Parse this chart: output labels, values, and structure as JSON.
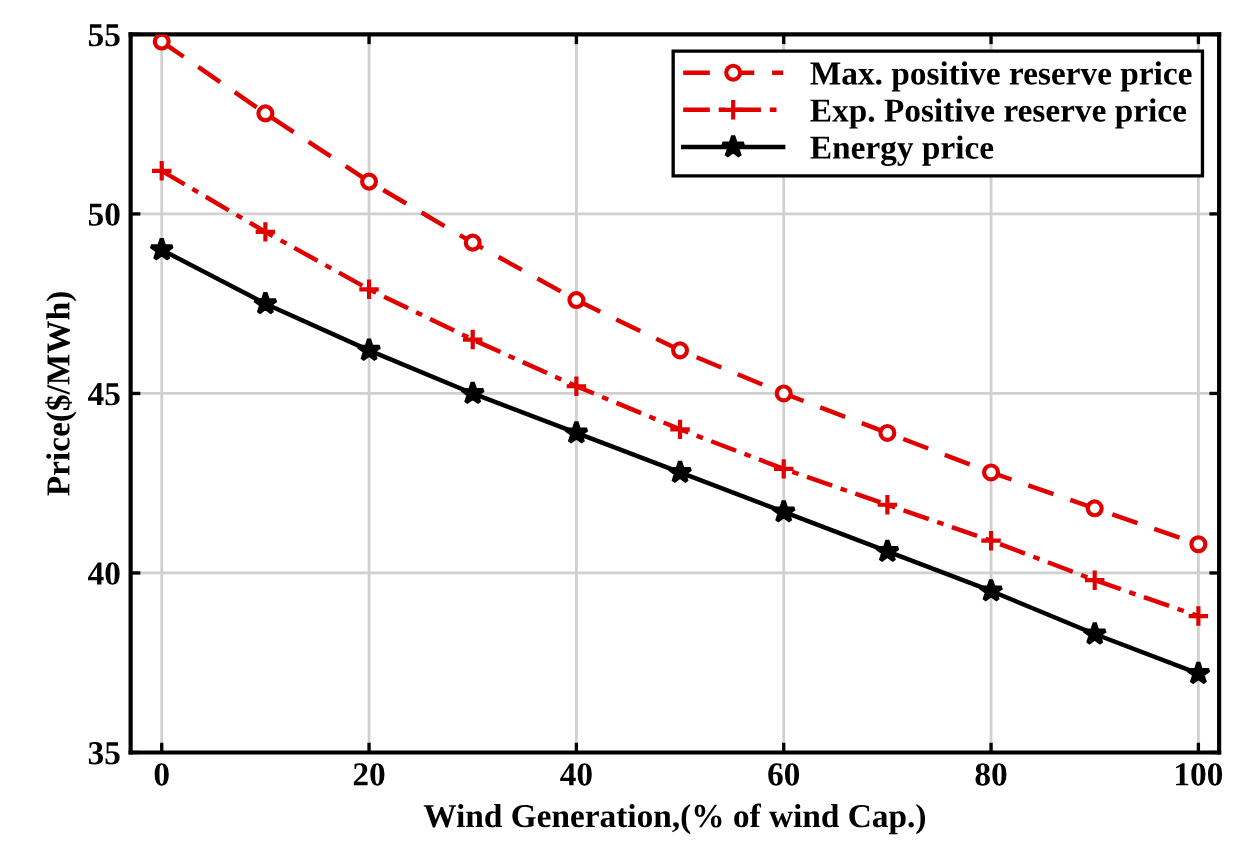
{
  "chart_data": {
    "type": "line",
    "xlabel": "Wind Generation,(% of wind Cap.)",
    "ylabel": "Price($/MWh)",
    "x": [
      0,
      10,
      20,
      30,
      40,
      50,
      60,
      70,
      80,
      90,
      100
    ],
    "series": [
      {
        "name": "Max. positive reserve price",
        "color": "#e00000",
        "line_style": "dashed",
        "marker": "circle",
        "values": [
          54.8,
          52.8,
          50.9,
          49.2,
          47.6,
          46.2,
          45.0,
          43.9,
          42.8,
          41.8,
          40.8
        ]
      },
      {
        "name": "Exp. Positive reserve price",
        "color": "#e00000",
        "line_style": "dashdot",
        "marker": "cross",
        "values": [
          51.2,
          49.5,
          47.9,
          46.5,
          45.2,
          44.0,
          42.9,
          41.9,
          40.9,
          39.8,
          38.8
        ]
      },
      {
        "name": "Energy price",
        "color": "#000000",
        "line_style": "solid",
        "marker": "star",
        "values": [
          49.0,
          47.5,
          46.2,
          45.0,
          43.9,
          42.8,
          41.7,
          40.6,
          39.5,
          38.3,
          37.2
        ]
      }
    ],
    "xlim": [
      -3,
      102
    ],
    "ylim": [
      35,
      55
    ],
    "xticks": [
      0,
      20,
      40,
      60,
      80,
      100
    ],
    "yticks": [
      35,
      40,
      45,
      50,
      55
    ],
    "grid": true,
    "legend": "top right"
  }
}
